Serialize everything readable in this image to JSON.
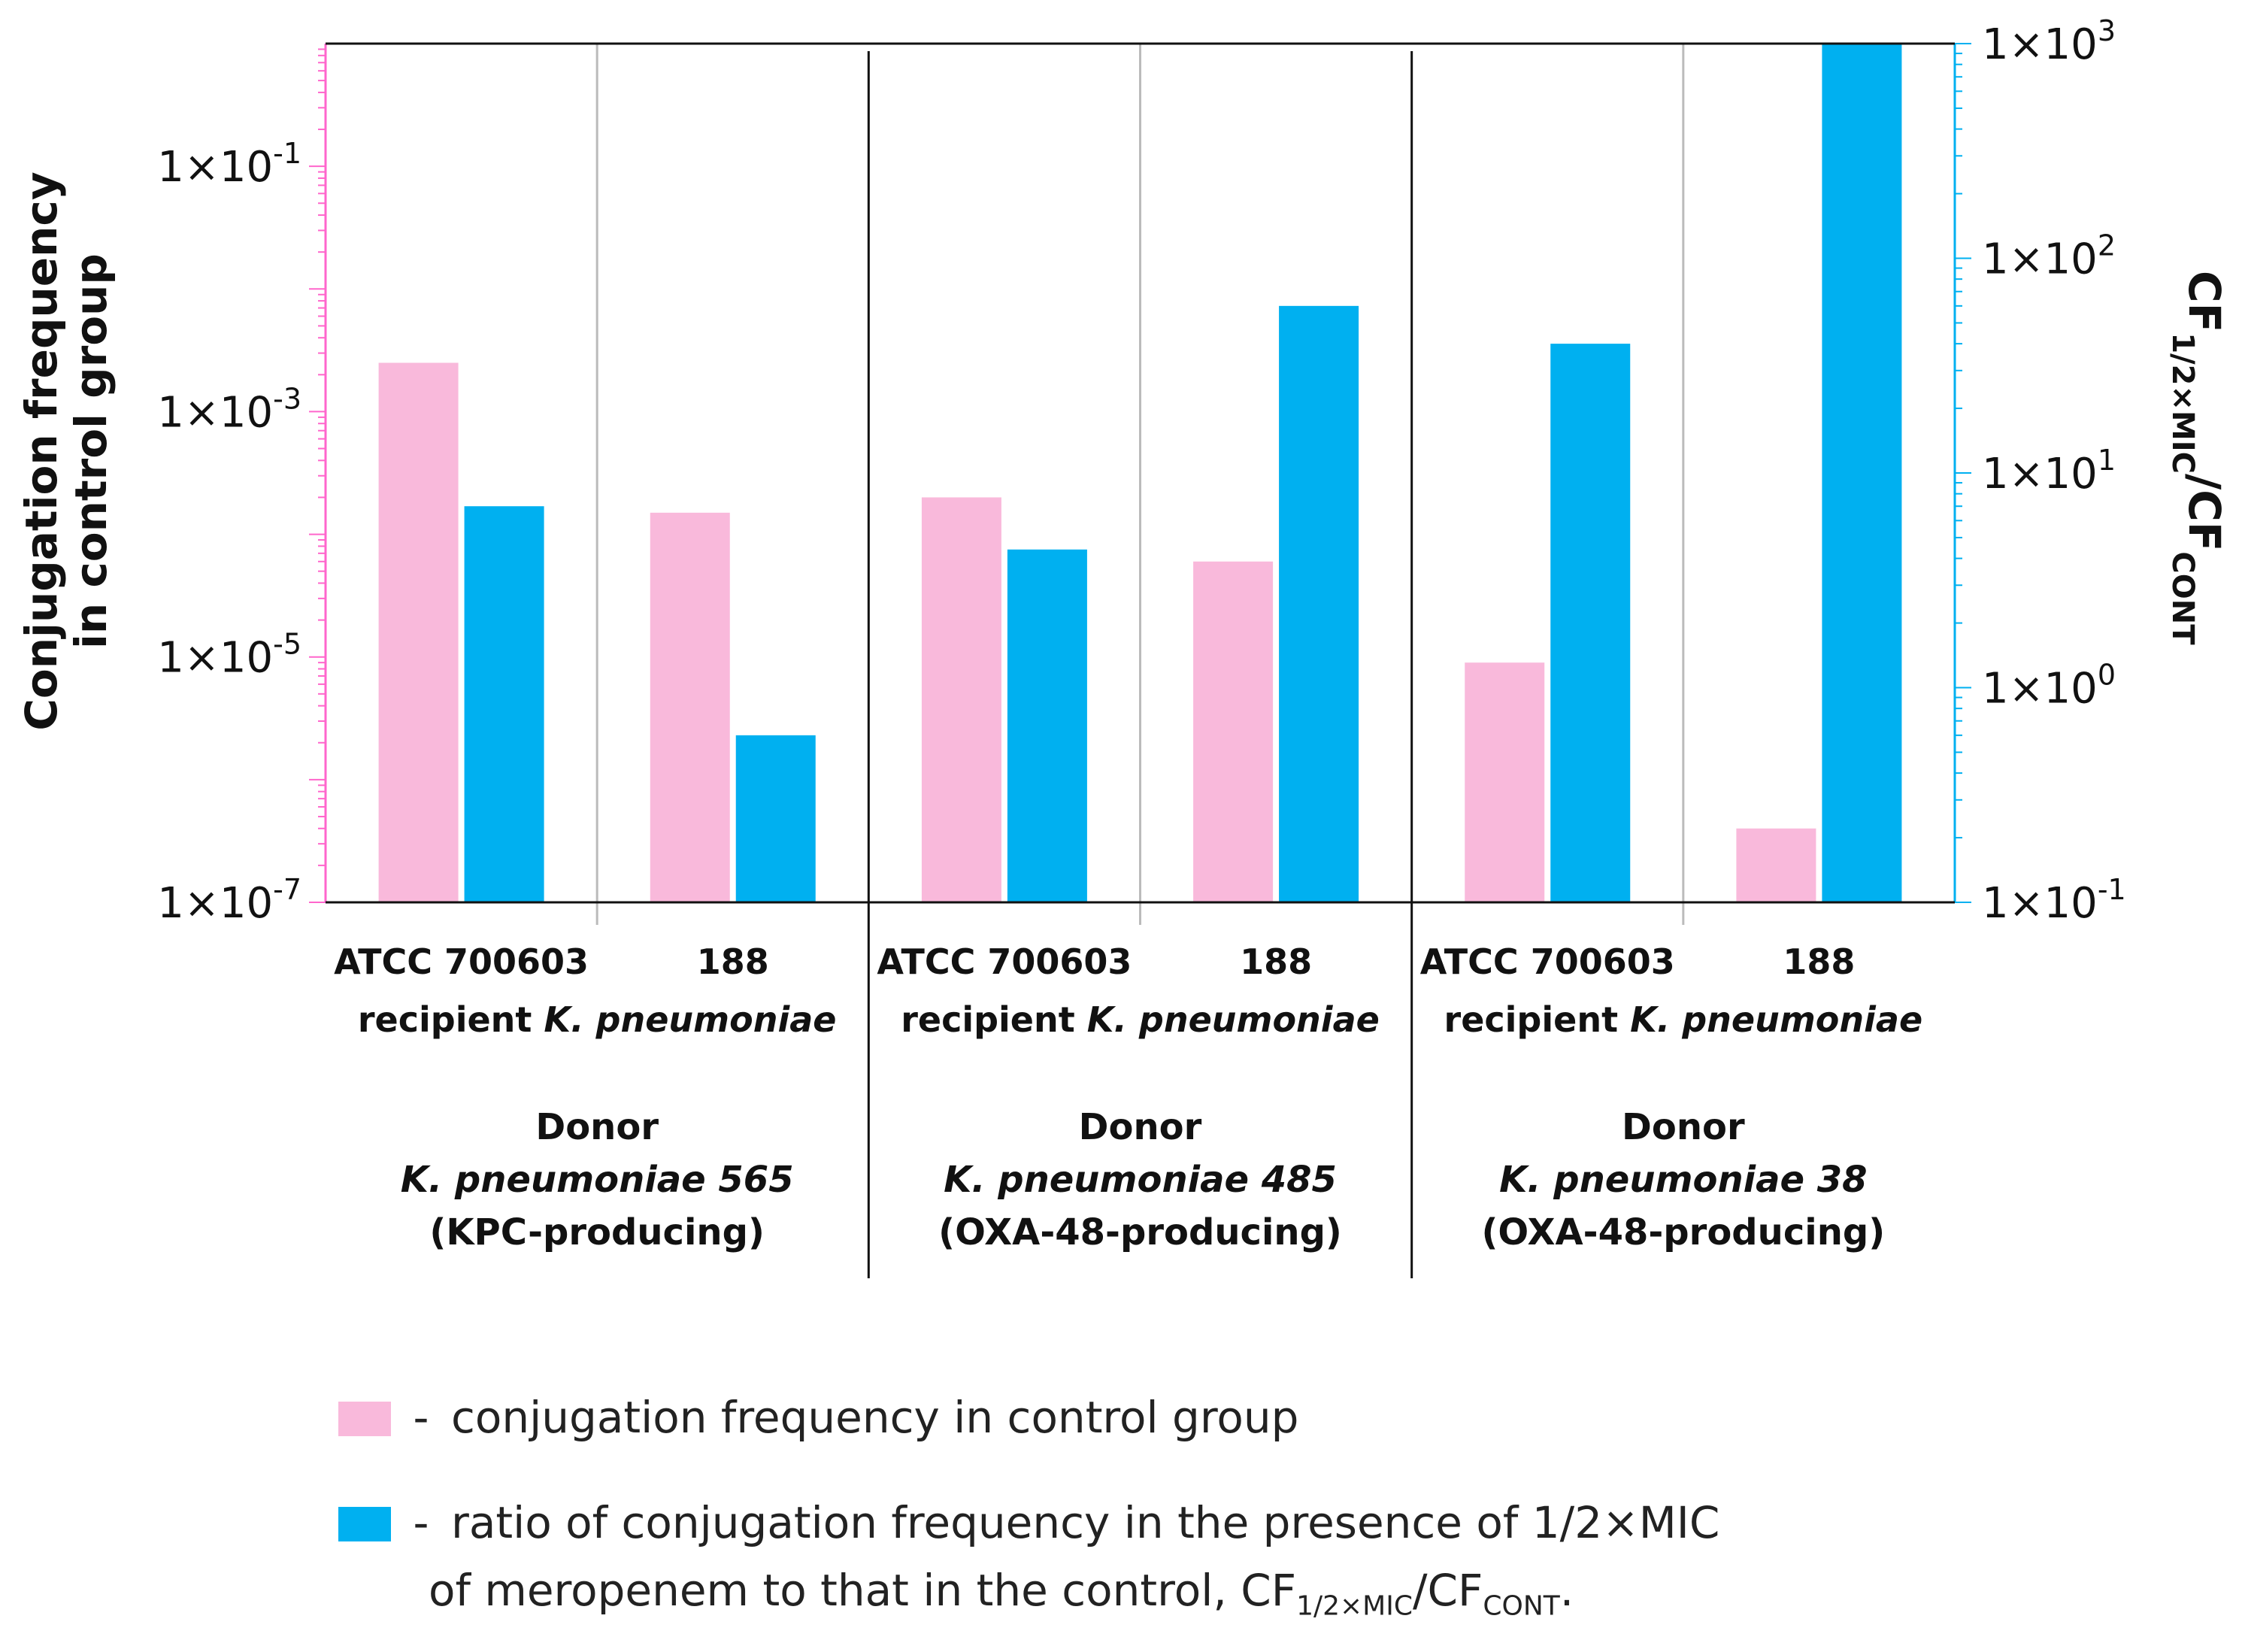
{
  "chart_data": {
    "type": "bar",
    "title": "",
    "y_left": {
      "label_lines": [
        "Conjugation frequency",
        "in control group"
      ],
      "scale": "log",
      "range": [
        1e-07,
        1
      ],
      "ticks": [
        {
          "value": 1e-07,
          "base": "1×10",
          "exp": "-7"
        },
        {
          "value": 1e-05,
          "base": "1×10",
          "exp": "-5"
        },
        {
          "value": 0.001,
          "base": "1×10",
          "exp": "-3"
        },
        {
          "value": 0.1,
          "base": "1×10",
          "exp": "-1"
        }
      ]
    },
    "y_right": {
      "label_main": "CF",
      "label_sub1": "1/2×MIC",
      "label_sep": "/CF",
      "label_sub2": "CONT",
      "scale": "log",
      "range": [
        0.1,
        1000
      ],
      "ticks": [
        {
          "value": 0.1,
          "base": "1×10",
          "exp": "-1"
        },
        {
          "value": 1,
          "base": "1×10",
          "exp": "0"
        },
        {
          "value": 10,
          "base": "1×10",
          "exp": "1"
        },
        {
          "value": 100,
          "base": "1×10",
          "exp": "2"
        },
        {
          "value": 1000,
          "base": "1×10",
          "exp": "3"
        }
      ]
    },
    "groups": [
      {
        "donor_label": "Donor",
        "donor_name": "K. pneumoniae 565",
        "donor_type": "(KPC-producing)",
        "recipient_prefix": "recipient ",
        "recipient_species": "K. pneumoniae",
        "recipients": [
          "ATCC 700603",
          "188"
        ],
        "control_frequency": [
          0.0025,
          0.00015
        ],
        "ratio": [
          7,
          0.6
        ]
      },
      {
        "donor_label": "Donor",
        "donor_name": "K. pneumoniae 485",
        "donor_type": "(OXA-48-producing)",
        "recipient_prefix": "recipient ",
        "recipient_species": "K. pneumoniae",
        "recipients": [
          "ATCC 700603",
          "188"
        ],
        "control_frequency": [
          0.0002,
          6e-05
        ],
        "ratio": [
          4.4,
          60
        ]
      },
      {
        "donor_label": "Donor",
        "donor_name": "K. pneumoniae 38",
        "donor_type": "(OXA-48-producing)",
        "recipient_prefix": "recipient ",
        "recipient_species": "K. pneumoniae",
        "recipients": [
          "ATCC 700603",
          "188"
        ],
        "control_frequency": [
          9e-06,
          4e-07
        ],
        "ratio": [
          40,
          1000
        ]
      }
    ],
    "series": [
      {
        "name": "conjugation frequency in control group",
        "axis": "left",
        "color": "#f9b9db"
      },
      {
        "name": "ratio CF1/2×MIC/CFCONT",
        "axis": "right",
        "color": "#00b0f0"
      }
    ]
  },
  "legend": {
    "dash": "-",
    "pink_text": "conjugation frequency in control group",
    "blue_text_1": "ratio of conjugation frequency in the presence of 1/2×MIC",
    "blue_text_2a": "of meropenem  to that in the control, CF",
    "blue_sub1": "1/2×MIC",
    "blue_sep": "/CF",
    "blue_sub2": "CONT",
    "blue_end": "."
  },
  "colors": {
    "pink": "#f9b9db",
    "blue": "#00b0f0",
    "left_axis": "#ff66cc",
    "right_axis": "#00b0f0"
  }
}
